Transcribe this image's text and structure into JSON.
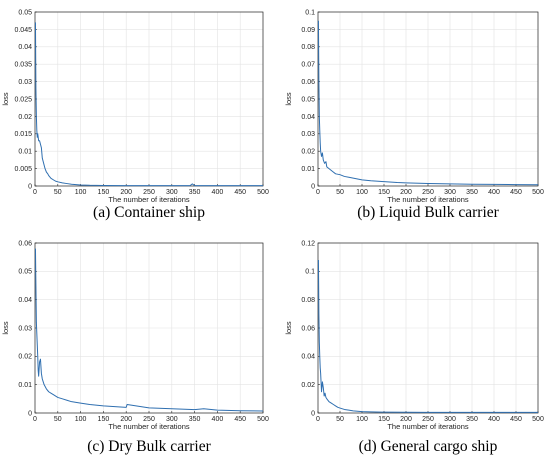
{
  "colors": {
    "line": "#2f6fb0",
    "grid": "#e3e3e3",
    "axes": "#262626"
  },
  "chart_data": [
    {
      "type": "line",
      "caption": "(a) Container ship",
      "xlabel": "The number of iterations",
      "ylabel": "loss",
      "xlim": [
        0,
        500
      ],
      "ylim": [
        0,
        0.05
      ],
      "xticks": [
        0,
        50,
        100,
        150,
        200,
        250,
        300,
        350,
        400,
        450,
        500
      ],
      "yticks": [
        0,
        0.005,
        0.01,
        0.015,
        0.02,
        0.025,
        0.03,
        0.035,
        0.04,
        0.045,
        0.05
      ],
      "ytick_labels": [
        "0",
        "0.005",
        "0.01",
        "0.015",
        "0.02",
        "0.025",
        "0.03",
        "0.035",
        "0.04",
        "0.045",
        "0.05"
      ],
      "grid": true,
      "series": [
        {
          "x": [
            1,
            2,
            3,
            4,
            5,
            6,
            8,
            10,
            12,
            14,
            16,
            18,
            20,
            22,
            25,
            28,
            30,
            35,
            40,
            45,
            50,
            60,
            70,
            80,
            90,
            100,
            120,
            150,
            200,
            250,
            300,
            340,
            345,
            350,
            400,
            450,
            500
          ],
          "y": [
            0.047,
            0.028,
            0.02,
            0.016,
            0.014,
            0.015,
            0.013,
            0.013,
            0.012,
            0.011,
            0.008,
            0.007,
            0.006,
            0.005,
            0.004,
            0.0035,
            0.003,
            0.0022,
            0.0018,
            0.0014,
            0.0012,
            0.0009,
            0.0007,
            0.0005,
            0.0004,
            0.0003,
            0.0002,
            0.00015,
            0.0001,
            0.0001,
            0.0001,
            0.0001,
            0.0006,
            0.0001,
            0.0001,
            0.0001,
            0.0001
          ]
        }
      ]
    },
    {
      "type": "line",
      "caption": "(b) Liquid Bulk carrier",
      "xlabel": "The number of iterations",
      "ylabel": "loss",
      "xlim": [
        0,
        500
      ],
      "ylim": [
        0,
        0.1
      ],
      "xticks": [
        0,
        50,
        100,
        150,
        200,
        250,
        300,
        350,
        400,
        450,
        500
      ],
      "yticks": [
        0,
        0.01,
        0.02,
        0.03,
        0.04,
        0.05,
        0.06,
        0.07,
        0.08,
        0.09,
        0.1
      ],
      "ytick_labels": [
        "0",
        "0.01",
        "0.02",
        "0.03",
        "0.04",
        "0.05",
        "0.06",
        "0.07",
        "0.08",
        "0.09",
        "0.1"
      ],
      "grid": true,
      "series": [
        {
          "x": [
            1,
            2,
            3,
            4,
            5,
            6,
            8,
            10,
            12,
            15,
            18,
            20,
            25,
            30,
            35,
            40,
            50,
            60,
            70,
            80,
            100,
            120,
            150,
            180,
            200,
            250,
            300,
            350,
            400,
            450,
            500
          ],
          "y": [
            0.095,
            0.06,
            0.04,
            0.032,
            0.025,
            0.02,
            0.017,
            0.019,
            0.015,
            0.013,
            0.014,
            0.011,
            0.01,
            0.009,
            0.008,
            0.007,
            0.0065,
            0.0055,
            0.005,
            0.0045,
            0.0035,
            0.003,
            0.0025,
            0.002,
            0.0018,
            0.0014,
            0.0012,
            0.001,
            0.0009,
            0.0008,
            0.0007
          ]
        }
      ]
    },
    {
      "type": "line",
      "caption": "(c) Dry Bulk carrier",
      "xlabel": "The number of iterations",
      "ylabel": "loss",
      "xlim": [
        0,
        500
      ],
      "ylim": [
        0,
        0.06
      ],
      "xticks": [
        0,
        50,
        100,
        150,
        200,
        250,
        300,
        350,
        400,
        450,
        500
      ],
      "yticks": [
        0,
        0.01,
        0.02,
        0.03,
        0.04,
        0.05,
        0.06
      ],
      "ytick_labels": [
        "0",
        "0.01",
        "0.02",
        "0.03",
        "0.04",
        "0.05",
        "0.06"
      ],
      "grid": true,
      "series": [
        {
          "x": [
            1,
            2,
            3,
            4,
            5,
            6,
            7,
            8,
            10,
            12,
            14,
            16,
            18,
            20,
            25,
            30,
            35,
            40,
            50,
            60,
            70,
            80,
            100,
            120,
            150,
            200,
            202,
            250,
            300,
            350,
            370,
            400,
            450,
            500
          ],
          "y": [
            0.058,
            0.045,
            0.032,
            0.028,
            0.024,
            0.02,
            0.015,
            0.013,
            0.018,
            0.019,
            0.014,
            0.012,
            0.011,
            0.01,
            0.0085,
            0.0075,
            0.007,
            0.0065,
            0.0055,
            0.005,
            0.0045,
            0.004,
            0.0035,
            0.003,
            0.0025,
            0.002,
            0.003,
            0.0018,
            0.0015,
            0.0012,
            0.0015,
            0.001,
            0.0008,
            0.0007
          ]
        }
      ]
    },
    {
      "type": "line",
      "caption": "(d) General cargo ship",
      "xlabel": "The number of iterations",
      "ylabel": "loss",
      "xlim": [
        0,
        500
      ],
      "ylim": [
        0,
        0.12
      ],
      "xticks": [
        0,
        50,
        100,
        150,
        200,
        250,
        300,
        350,
        400,
        450,
        500
      ],
      "yticks": [
        0,
        0.02,
        0.04,
        0.06,
        0.08,
        0.1,
        0.12
      ],
      "ytick_labels": [
        "0",
        "0.02",
        "0.04",
        "0.06",
        "0.08",
        "0.1",
        "0.12"
      ],
      "grid": true,
      "series": [
        {
          "x": [
            1,
            2,
            3,
            4,
            5,
            6,
            8,
            10,
            12,
            14,
            16,
            18,
            20,
            25,
            30,
            35,
            40,
            45,
            50,
            60,
            70,
            80,
            100,
            120,
            150,
            200,
            250,
            300,
            350,
            400,
            450,
            500
          ],
          "y": [
            0.108,
            0.07,
            0.05,
            0.04,
            0.032,
            0.028,
            0.015,
            0.022,
            0.018,
            0.012,
            0.014,
            0.011,
            0.01,
            0.008,
            0.007,
            0.006,
            0.005,
            0.004,
            0.0035,
            0.0025,
            0.002,
            0.0015,
            0.001,
            0.0008,
            0.0006,
            0.0005,
            0.0004,
            0.0004,
            0.0004,
            0.0004,
            0.0004,
            0.0004
          ]
        }
      ]
    }
  ]
}
